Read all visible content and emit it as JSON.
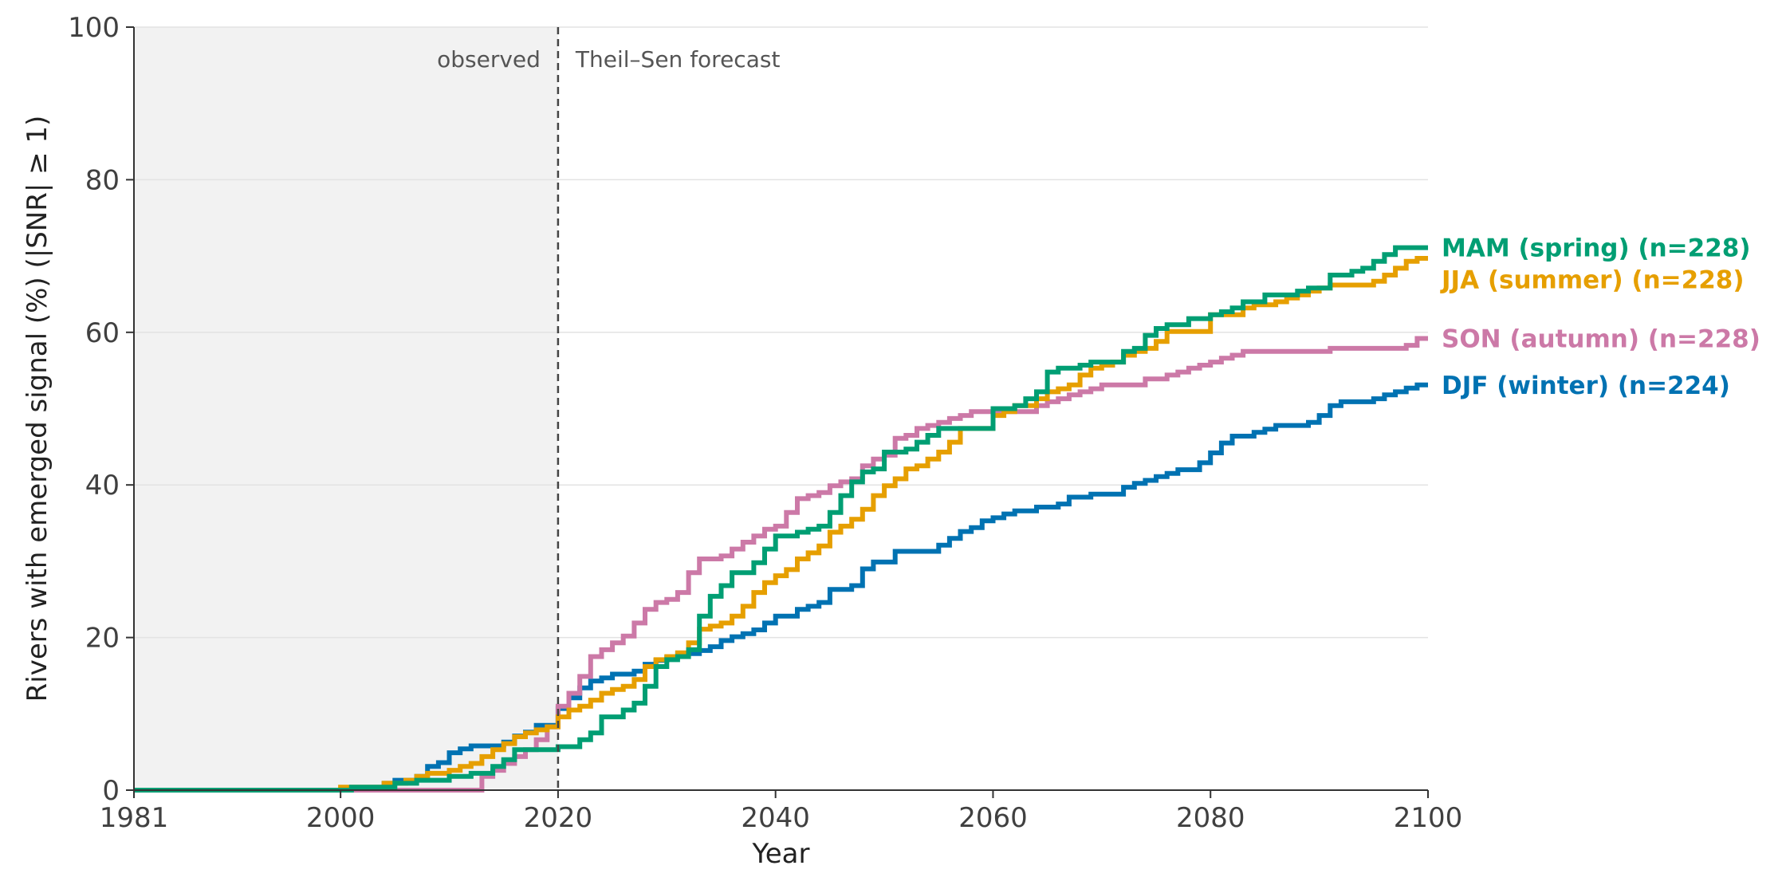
{
  "chart_data": {
    "type": "line",
    "step": true,
    "xlabel": "Year",
    "ylabel": "Rivers with emerged signal (%)    (|SNR| ≥ 1)",
    "xlim": [
      1981,
      2100
    ],
    "ylim": [
      0,
      100
    ],
    "x_ticks": [
      "1981",
      "2000",
      "2020",
      "2040",
      "2060",
      "2080",
      "2100"
    ],
    "y_ticks": [
      "0",
      "20",
      "40",
      "60",
      "80",
      "100"
    ],
    "grid": "horizontal",
    "observed_period": [
      1981,
      2020
    ],
    "split_year": 2020,
    "annotations": {
      "observed": "observed",
      "forecast": "Theil–Sen forecast"
    },
    "legend_placement": "right-end-labels",
    "series": [
      {
        "name": "MAM (spring)  (n=228)",
        "color": "#009e73",
        "points": [
          [
            1981,
            0
          ],
          [
            2000,
            0
          ],
          [
            2001,
            0.4
          ],
          [
            2005,
            0.9
          ],
          [
            2007,
            1.3
          ],
          [
            2010,
            1.8
          ],
          [
            2012,
            2.2
          ],
          [
            2014,
            3.1
          ],
          [
            2015,
            4.0
          ],
          [
            2016,
            5.3
          ],
          [
            2019,
            5.3
          ],
          [
            2020,
            5.7
          ],
          [
            2022,
            6.6
          ],
          [
            2023,
            7.5
          ],
          [
            2024,
            9.6
          ],
          [
            2026,
            10.5
          ],
          [
            2027,
            11.4
          ],
          [
            2028,
            13.6
          ],
          [
            2029,
            16.2
          ],
          [
            2030,
            17.1
          ],
          [
            2031,
            17.5
          ],
          [
            2032,
            18.4
          ],
          [
            2033,
            22.8
          ],
          [
            2034,
            25.4
          ],
          [
            2035,
            26.8
          ],
          [
            2036,
            28.5
          ],
          [
            2038,
            29.8
          ],
          [
            2039,
            31.6
          ],
          [
            2040,
            33.3
          ],
          [
            2042,
            33.8
          ],
          [
            2043,
            34.2
          ],
          [
            2044,
            34.6
          ],
          [
            2045,
            36.4
          ],
          [
            2046,
            38.6
          ],
          [
            2047,
            40.4
          ],
          [
            2048,
            41.7
          ],
          [
            2049,
            42.1
          ],
          [
            2050,
            44.3
          ],
          [
            2052,
            44.7
          ],
          [
            2053,
            45.6
          ],
          [
            2054,
            46.5
          ],
          [
            2055,
            47.4
          ],
          [
            2058,
            47.4
          ],
          [
            2060,
            50.0
          ],
          [
            2062,
            50.4
          ],
          [
            2063,
            51.3
          ],
          [
            2064,
            52.2
          ],
          [
            2065,
            54.8
          ],
          [
            2066,
            55.3
          ],
          [
            2068,
            55.7
          ],
          [
            2069,
            56.1
          ],
          [
            2072,
            57.5
          ],
          [
            2073,
            57.9
          ],
          [
            2074,
            59.6
          ],
          [
            2075,
            60.5
          ],
          [
            2076,
            61.0
          ],
          [
            2078,
            61.8
          ],
          [
            2080,
            62.3
          ],
          [
            2081,
            62.7
          ],
          [
            2082,
            63.2
          ],
          [
            2083,
            64.0
          ],
          [
            2085,
            64.9
          ],
          [
            2088,
            65.4
          ],
          [
            2089,
            65.8
          ],
          [
            2091,
            67.5
          ],
          [
            2093,
            68.0
          ],
          [
            2094,
            68.4
          ],
          [
            2095,
            69.3
          ],
          [
            2096,
            70.2
          ],
          [
            2097,
            71.1
          ],
          [
            2100,
            71.1
          ]
        ]
      },
      {
        "name": "JJA (summer)  (n=228)",
        "color": "#e69f00",
        "points": [
          [
            1981,
            0
          ],
          [
            1999,
            0
          ],
          [
            2000,
            0.4
          ],
          [
            2003,
            0.4
          ],
          [
            2004,
            0.9
          ],
          [
            2006,
            1.3
          ],
          [
            2007,
            1.8
          ],
          [
            2008,
            2.2
          ],
          [
            2010,
            2.6
          ],
          [
            2011,
            3.1
          ],
          [
            2012,
            3.5
          ],
          [
            2013,
            4.4
          ],
          [
            2014,
            5.3
          ],
          [
            2015,
            6.1
          ],
          [
            2016,
            7.0
          ],
          [
            2017,
            7.5
          ],
          [
            2018,
            7.9
          ],
          [
            2019,
            8.3
          ],
          [
            2020,
            9.6
          ],
          [
            2021,
            10.5
          ],
          [
            2022,
            11.0
          ],
          [
            2023,
            11.8
          ],
          [
            2024,
            12.7
          ],
          [
            2025,
            13.2
          ],
          [
            2026,
            13.6
          ],
          [
            2027,
            14.5
          ],
          [
            2028,
            16.2
          ],
          [
            2029,
            17.1
          ],
          [
            2030,
            17.5
          ],
          [
            2031,
            18.0
          ],
          [
            2032,
            19.3
          ],
          [
            2033,
            21.1
          ],
          [
            2034,
            21.5
          ],
          [
            2035,
            21.9
          ],
          [
            2036,
            22.8
          ],
          [
            2037,
            24.1
          ],
          [
            2038,
            25.9
          ],
          [
            2039,
            27.2
          ],
          [
            2040,
            28.1
          ],
          [
            2041,
            28.9
          ],
          [
            2042,
            30.3
          ],
          [
            2043,
            31.1
          ],
          [
            2044,
            32.0
          ],
          [
            2045,
            33.8
          ],
          [
            2046,
            34.6
          ],
          [
            2047,
            35.5
          ],
          [
            2048,
            36.8
          ],
          [
            2049,
            38.6
          ],
          [
            2050,
            39.9
          ],
          [
            2051,
            40.8
          ],
          [
            2052,
            42.1
          ],
          [
            2053,
            42.5
          ],
          [
            2054,
            43.4
          ],
          [
            2055,
            44.3
          ],
          [
            2056,
            45.6
          ],
          [
            2057,
            47.4
          ],
          [
            2060,
            49.1
          ],
          [
            2061,
            49.6
          ],
          [
            2062,
            50.4
          ],
          [
            2064,
            51.3
          ],
          [
            2065,
            52.2
          ],
          [
            2066,
            52.6
          ],
          [
            2067,
            53.1
          ],
          [
            2068,
            54.4
          ],
          [
            2069,
            55.3
          ],
          [
            2070,
            55.7
          ],
          [
            2071,
            56.1
          ],
          [
            2072,
            57.0
          ],
          [
            2073,
            57.5
          ],
          [
            2074,
            57.9
          ],
          [
            2075,
            58.8
          ],
          [
            2076,
            60.1
          ],
          [
            2080,
            62.3
          ],
          [
            2083,
            63.2
          ],
          [
            2084,
            63.6
          ],
          [
            2086,
            64.0
          ],
          [
            2087,
            64.5
          ],
          [
            2088,
            64.9
          ],
          [
            2089,
            65.4
          ],
          [
            2090,
            65.8
          ],
          [
            2091,
            66.2
          ],
          [
            2095,
            66.7
          ],
          [
            2096,
            67.5
          ],
          [
            2097,
            68.4
          ],
          [
            2098,
            69.3
          ],
          [
            2099,
            69.7
          ],
          [
            2100,
            69.7
          ]
        ]
      },
      {
        "name": "SON (autumn)  (n=228)",
        "color": "#cc79a7",
        "points": [
          [
            1981,
            0
          ],
          [
            2012,
            0
          ],
          [
            2013,
            1.8
          ],
          [
            2014,
            2.6
          ],
          [
            2015,
            3.5
          ],
          [
            2016,
            4.4
          ],
          [
            2017,
            5.3
          ],
          [
            2018,
            6.6
          ],
          [
            2019,
            8.3
          ],
          [
            2020,
            11.0
          ],
          [
            2021,
            12.7
          ],
          [
            2022,
            14.9
          ],
          [
            2023,
            17.5
          ],
          [
            2024,
            18.4
          ],
          [
            2025,
            19.3
          ],
          [
            2026,
            20.2
          ],
          [
            2027,
            21.9
          ],
          [
            2028,
            23.7
          ],
          [
            2029,
            24.6
          ],
          [
            2030,
            25.0
          ],
          [
            2031,
            25.9
          ],
          [
            2032,
            28.5
          ],
          [
            2033,
            30.3
          ],
          [
            2035,
            30.7
          ],
          [
            2036,
            31.6
          ],
          [
            2037,
            32.5
          ],
          [
            2038,
            33.3
          ],
          [
            2039,
            34.2
          ],
          [
            2040,
            34.6
          ],
          [
            2041,
            36.4
          ],
          [
            2042,
            38.2
          ],
          [
            2043,
            38.6
          ],
          [
            2044,
            39.0
          ],
          [
            2045,
            39.9
          ],
          [
            2046,
            40.4
          ],
          [
            2047,
            40.8
          ],
          [
            2048,
            42.5
          ],
          [
            2049,
            43.4
          ],
          [
            2050,
            43.9
          ],
          [
            2051,
            46.1
          ],
          [
            2052,
            46.5
          ],
          [
            2053,
            47.4
          ],
          [
            2054,
            47.8
          ],
          [
            2055,
            48.2
          ],
          [
            2056,
            48.7
          ],
          [
            2057,
            49.1
          ],
          [
            2058,
            49.6
          ],
          [
            2064,
            50.4
          ],
          [
            2065,
            50.9
          ],
          [
            2066,
            51.3
          ],
          [
            2067,
            51.8
          ],
          [
            2068,
            52.2
          ],
          [
            2069,
            52.6
          ],
          [
            2070,
            53.1
          ],
          [
            2074,
            53.9
          ],
          [
            2076,
            54.4
          ],
          [
            2077,
            54.8
          ],
          [
            2078,
            55.3
          ],
          [
            2079,
            55.7
          ],
          [
            2080,
            56.1
          ],
          [
            2081,
            56.6
          ],
          [
            2082,
            57.0
          ],
          [
            2083,
            57.5
          ],
          [
            2090,
            57.5
          ],
          [
            2091,
            57.9
          ],
          [
            2098,
            58.3
          ],
          [
            2099,
            59.2
          ],
          [
            2100,
            59.2
          ]
        ]
      },
      {
        "name": "DJF (winter)  (n=224)",
        "color": "#0072b2",
        "points": [
          [
            1981,
            0
          ],
          [
            2003,
            0
          ],
          [
            2004,
            0.9
          ],
          [
            2005,
            1.3
          ],
          [
            2007,
            1.8
          ],
          [
            2008,
            3.1
          ],
          [
            2009,
            3.6
          ],
          [
            2010,
            4.9
          ],
          [
            2011,
            5.4
          ],
          [
            2012,
            5.8
          ],
          [
            2015,
            6.3
          ],
          [
            2016,
            7.1
          ],
          [
            2017,
            7.6
          ],
          [
            2018,
            8.5
          ],
          [
            2020,
            10.7
          ],
          [
            2021,
            12.1
          ],
          [
            2022,
            13.4
          ],
          [
            2023,
            14.3
          ],
          [
            2024,
            14.7
          ],
          [
            2025,
            15.2
          ],
          [
            2027,
            15.6
          ],
          [
            2028,
            16.5
          ],
          [
            2029,
            17.0
          ],
          [
            2030,
            17.4
          ],
          [
            2031,
            17.9
          ],
          [
            2032,
            17.9
          ],
          [
            2033,
            18.3
          ],
          [
            2034,
            18.8
          ],
          [
            2035,
            19.6
          ],
          [
            2036,
            20.1
          ],
          [
            2037,
            20.5
          ],
          [
            2038,
            21.0
          ],
          [
            2039,
            21.9
          ],
          [
            2040,
            22.8
          ],
          [
            2041,
            22.8
          ],
          [
            2042,
            23.7
          ],
          [
            2043,
            24.1
          ],
          [
            2044,
            24.6
          ],
          [
            2045,
            26.3
          ],
          [
            2047,
            26.8
          ],
          [
            2048,
            29.0
          ],
          [
            2049,
            29.9
          ],
          [
            2051,
            31.3
          ],
          [
            2054,
            31.3
          ],
          [
            2055,
            32.1
          ],
          [
            2056,
            33.0
          ],
          [
            2057,
            33.9
          ],
          [
            2058,
            34.4
          ],
          [
            2059,
            35.3
          ],
          [
            2060,
            35.7
          ],
          [
            2061,
            36.2
          ],
          [
            2062,
            36.6
          ],
          [
            2064,
            37.1
          ],
          [
            2066,
            37.5
          ],
          [
            2067,
            38.4
          ],
          [
            2069,
            38.8
          ],
          [
            2072,
            39.7
          ],
          [
            2073,
            40.2
          ],
          [
            2074,
            40.6
          ],
          [
            2075,
            41.1
          ],
          [
            2076,
            41.5
          ],
          [
            2077,
            42.0
          ],
          [
            2079,
            42.9
          ],
          [
            2080,
            44.2
          ],
          [
            2081,
            45.5
          ],
          [
            2082,
            46.4
          ],
          [
            2084,
            46.9
          ],
          [
            2085,
            47.3
          ],
          [
            2086,
            47.8
          ],
          [
            2089,
            48.2
          ],
          [
            2090,
            49.1
          ],
          [
            2091,
            50.4
          ],
          [
            2092,
            50.9
          ],
          [
            2095,
            51.3
          ],
          [
            2096,
            51.8
          ],
          [
            2097,
            52.2
          ],
          [
            2098,
            52.7
          ],
          [
            2099,
            53.1
          ],
          [
            2100,
            53.1
          ]
        ]
      }
    ]
  }
}
